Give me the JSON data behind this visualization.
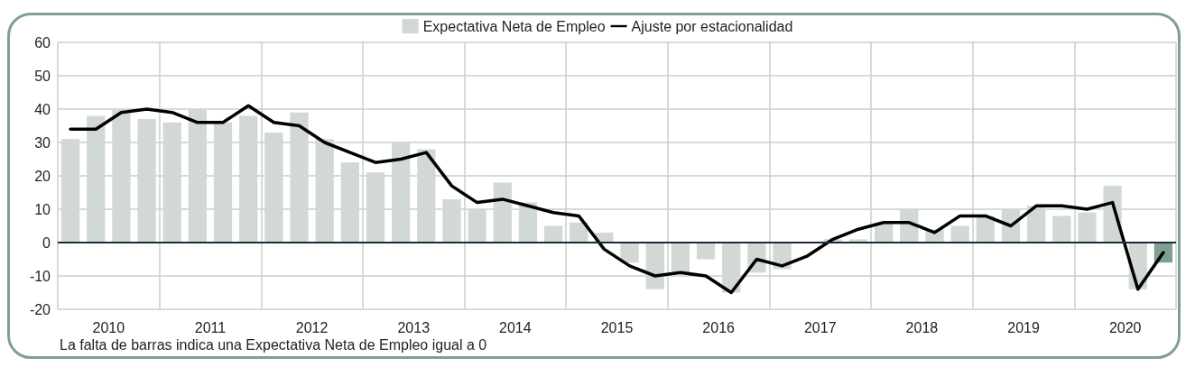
{
  "chart_data": {
    "type": "bar",
    "x": [
      2010.125,
      2010.375,
      2010.625,
      2010.875,
      2011.125,
      2011.375,
      2011.625,
      2011.875,
      2012.125,
      2012.375,
      2012.625,
      2012.875,
      2013.125,
      2013.375,
      2013.625,
      2013.875,
      2014.125,
      2014.375,
      2014.625,
      2014.875,
      2015.125,
      2015.375,
      2015.625,
      2015.875,
      2016.125,
      2016.375,
      2016.625,
      2016.875,
      2017.125,
      2017.375,
      2017.625,
      2017.875,
      2018.125,
      2018.375,
      2018.625,
      2018.875,
      2019.125,
      2019.375,
      2019.625,
      2019.875,
      2020.125,
      2020.375,
      2020.625,
      2020.875
    ],
    "series": [
      {
        "name": "Expectativa Neta de Empleo",
        "color": "#d2d9d4",
        "colors": [
          "#d2d9d4",
          "#d2d9d4",
          "#d2d9d4",
          "#d2d9d4",
          "#d2d9d4",
          "#d2d9d4",
          "#d2d9d4",
          "#d2d9d4",
          "#d2d9d4",
          "#d2d9d4",
          "#d2d9d4",
          "#d2d9d4",
          "#d2d9d4",
          "#d2d9d4",
          "#d2d9d4",
          "#d2d9d4",
          "#d2d9d4",
          "#d2d9d4",
          "#d2d9d4",
          "#d2d9d4",
          "#d2d9d4",
          "#d2d9d4",
          "#d2d9d4",
          "#d2d9d4",
          "#d2d9d4",
          "#d2d9d4",
          "#d2d9d4",
          "#d2d9d4",
          "#d2d9d4",
          "#d2d9d4",
          "#d2d9d4",
          "#d2d9d4",
          "#d2d9d4",
          "#d2d9d4",
          "#d2d9d4",
          "#d2d9d4",
          "#d2d9d4",
          "#d2d9d4",
          "#d2d9d4",
          "#d2d9d4",
          "#d2d9d4",
          "#d2d9d4",
          "#d2d9d4",
          "#7fa08f"
        ],
        "values": [
          31,
          38,
          40,
          37,
          36,
          40,
          36,
          38,
          33,
          39,
          31,
          24,
          21,
          30,
          28,
          13,
          10,
          18,
          12,
          5,
          6,
          3,
          -6,
          -14,
          -9,
          -5,
          -15,
          -9,
          -8,
          0,
          1,
          1,
          6,
          10,
          4,
          5,
          8,
          10,
          11,
          8,
          9,
          17,
          -14,
          -6
        ]
      },
      {
        "name": "Ajuste por estacionalidad",
        "type": "line",
        "color": "#000000",
        "values": [
          34,
          34,
          39,
          40,
          39,
          36,
          36,
          41,
          36,
          35,
          30,
          27,
          24,
          25,
          27,
          17,
          12,
          13,
          11,
          9,
          8,
          -2,
          -7,
          -10,
          -9,
          -10,
          -15,
          -5,
          -7,
          -4,
          1,
          4,
          6,
          6,
          3,
          8,
          8,
          5,
          11,
          11,
          10,
          12,
          -14,
          -3
        ]
      }
    ],
    "xlim": [
      2010,
      2021
    ],
    "xticks": [
      {
        "value": 2010,
        "label": null
      },
      {
        "value": 2010.5,
        "label": "2010"
      },
      {
        "value": 2011,
        "label": null
      },
      {
        "value": 2011.5,
        "label": "2011"
      },
      {
        "value": 2012,
        "label": null
      },
      {
        "value": 2012.5,
        "label": "2012"
      },
      {
        "value": 2013,
        "label": null
      },
      {
        "value": 2013.5,
        "label": "2013"
      },
      {
        "value": 2014,
        "label": null
      },
      {
        "value": 2014.5,
        "label": "2014"
      },
      {
        "value": 2015,
        "label": null
      },
      {
        "value": 2015.5,
        "label": "2015"
      },
      {
        "value": 2016,
        "label": null
      },
      {
        "value": 2016.5,
        "label": "2016"
      },
      {
        "value": 2017,
        "label": null
      },
      {
        "value": 2017.5,
        "label": "2017"
      },
      {
        "value": 2018,
        "label": null
      },
      {
        "value": 2018.5,
        "label": "2018"
      },
      {
        "value": 2019,
        "label": null
      },
      {
        "value": 2019.5,
        "label": "2019"
      },
      {
        "value": 2020,
        "label": null
      },
      {
        "value": 2020.5,
        "label": "2020"
      },
      {
        "value": 2021,
        "label": null
      }
    ],
    "ylim": [
      -20,
      60
    ],
    "yticks": [
      -20,
      -10,
      0,
      10,
      20,
      30,
      40,
      50,
      60
    ],
    "grid": true,
    "legend": "top",
    "marker": "none",
    "line_style": "solid",
    "ref_lines": [
      {
        "axis": "y",
        "value": 0,
        "color": "#1c2b3a"
      }
    ],
    "annotations": [
      "La falta de barras indica una Expectativa Neta de Empleo igual a 0"
    ]
  }
}
